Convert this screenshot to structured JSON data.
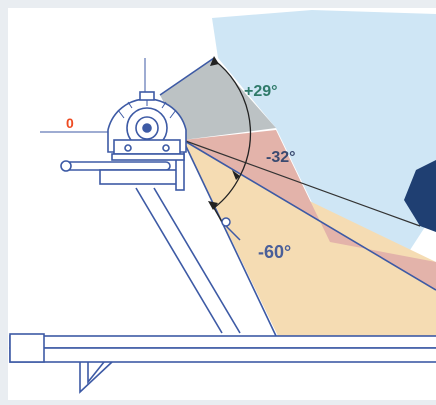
{
  "diagram": {
    "angles": [
      {
        "label": "+29°",
        "color": "#2f7a6a"
      },
      {
        "label": "-32°",
        "color": "#3a4a70"
      },
      {
        "label": "-60°",
        "color": "#4a5f99"
      }
    ],
    "zero_label": "0",
    "zero_color": "#ee4b22",
    "colors": {
      "sky": "#cfe6f5",
      "zone_up": "#bcc2c4",
      "zone_mid": "#e3b3aa",
      "zone_low": "#f5dcb3",
      "linework": "#3d5aa5",
      "dark": "#1f3f72"
    }
  }
}
